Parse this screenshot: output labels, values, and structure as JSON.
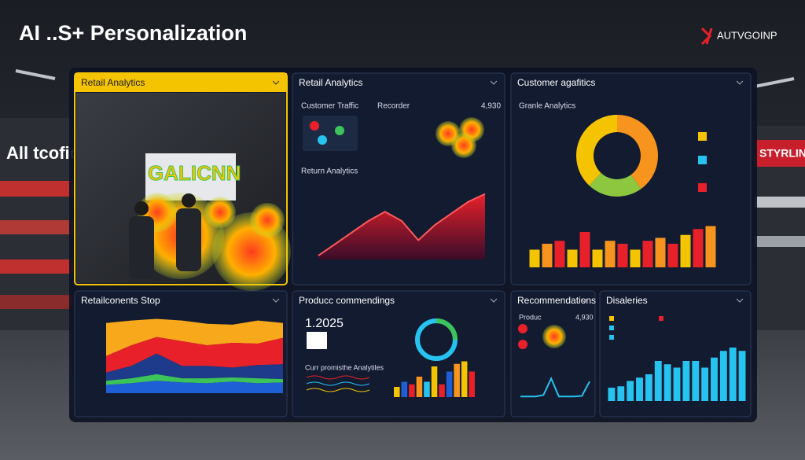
{
  "header": {
    "title": "AI ..S+ Personalization",
    "brand": "AUTVGOINP"
  },
  "store": {
    "left_sign": "All tcofic",
    "right_sign": "STYRLIN",
    "wall_sign": "GALICNN"
  },
  "panels": [
    {
      "title": "Retail Analytics"
    },
    {
      "title": "Retail Analytics",
      "traffic": "Customer Traffic",
      "recorder": "Recorder",
      "recorder_value": "4,930",
      "chart": {
        "title": "Return Analytics",
        "values": [
          0.5,
          2,
          3.5,
          5,
          6.2,
          5,
          2.5,
          4.5,
          6,
          7.5,
          8.5
        ],
        "ylim": [
          0,
          10
        ]
      }
    },
    {
      "title": "Customer agafitics",
      "subtitle": "Granle Analytics",
      "donut": {
        "values": [
          40,
          22,
          38
        ],
        "colors": [
          "#f7941d",
          "#8dc63f",
          "#f5c400"
        ]
      },
      "bars": {
        "values": [
          3,
          4,
          4.5,
          3,
          6,
          3,
          4.5,
          4,
          3,
          4.5,
          5,
          4,
          5.5,
          6.5,
          7
        ],
        "colors": [
          "#f5c400",
          "#f7941d",
          "#e8202a",
          "#f5c400",
          "#e8202a",
          "#f5c400",
          "#f7941d",
          "#e8202a",
          "#f5c400",
          "#e8202a",
          "#f7941d",
          "#e8202a",
          "#f5c400",
          "#e8202a",
          "#f7941d"
        ],
        "ylim": [
          0,
          10
        ]
      }
    },
    {
      "title": "Retailconents Stop",
      "chart": {
        "ylim": [
          0,
          10
        ],
        "series": [
          {
            "color": "#1e5fd6",
            "values": [
              1,
              1.2,
              1.5,
              1.3,
              1.2,
              1.4,
              1.2,
              1.3
            ]
          },
          {
            "color": "#3cc35a",
            "values": [
              0.5,
              0.6,
              0.8,
              0.5,
              0.6,
              0.5,
              0.6,
              0.4
            ]
          },
          {
            "color": "#1e3a8a",
            "values": [
              1,
              1.5,
              2.5,
              1.5,
              1.5,
              1.2,
              1.6,
              1.8
            ]
          },
          {
            "color": "#e8202a",
            "values": [
              2,
              2.5,
              2,
              3,
              2.5,
              3,
              2.6,
              3.2
            ]
          },
          {
            "color": "#f7a81b",
            "values": [
              4,
              3,
              2.2,
              2.5,
              2.6,
              2.2,
              2.8,
              1.8
            ]
          }
        ]
      }
    },
    {
      "title": "Producc commendings",
      "code": "1.2025",
      "subtitle": "Curr promisthe Analytiles",
      "bars": {
        "values": [
          2,
          3,
          2.5,
          4,
          3,
          6,
          2.5,
          5,
          6.5,
          7,
          5
        ],
        "colors": [
          "#f5c400",
          "#1e5fd6",
          "#e8202a",
          "#f7941d",
          "#27c3f0",
          "#f5c400",
          "#e8202a",
          "#1e5fd6",
          "#f7941d",
          "#f5c400",
          "#e8202a"
        ],
        "ylim": [
          0,
          10
        ]
      }
    },
    {
      "title": "Recommendations",
      "label": "Produc",
      "value": "4,930",
      "line": {
        "values": [
          1,
          1,
          1,
          1.5,
          7,
          1,
          1,
          1,
          1.2,
          6
        ],
        "ylim": [
          0,
          10
        ]
      }
    },
    {
      "title": "Disaleries",
      "bars": {
        "values": [
          2,
          2.2,
          3,
          3.5,
          4,
          6,
          5.5,
          5,
          6,
          6,
          5,
          6.5,
          7.5,
          8,
          7.5
        ],
        "color": "#27c3f0",
        "ylim": [
          0,
          10
        ]
      }
    }
  ]
}
